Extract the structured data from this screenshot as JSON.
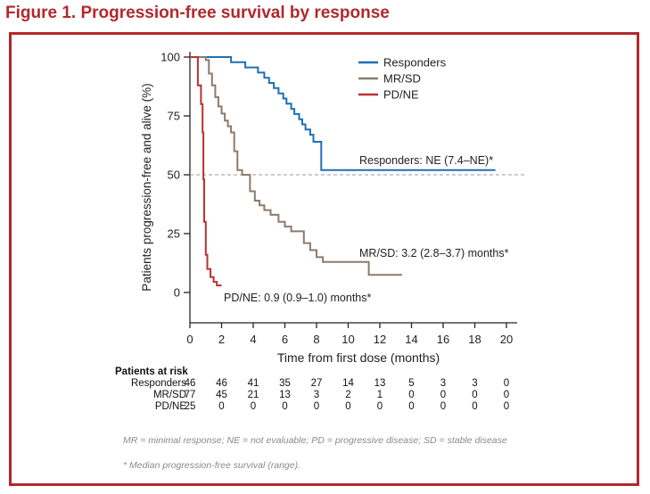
{
  "figure_title": "Figure 1. Progression-free survival by response",
  "colors": {
    "title": "#b2282d",
    "frame": "#b2282d",
    "axis": "#222222",
    "reference_line": "#999999"
  },
  "chart_data": {
    "type": "line",
    "subtype": "kaplan-meier step",
    "xlabel": "Time from first dose (months)",
    "ylabel": "Patients progression-free and alive (%)",
    "xlim": [
      0,
      20
    ],
    "ylim": [
      0,
      100
    ],
    "x_ticks": [
      "0",
      "2",
      "4",
      "6",
      "8",
      "10",
      "12",
      "14",
      "16",
      "18",
      "20"
    ],
    "y_ticks": [
      "0",
      "25",
      "50",
      "75",
      "100"
    ],
    "reference_line": {
      "y": 50,
      "style": "dashed"
    },
    "legend_position": "top-right",
    "series": [
      {
        "name": "Responders",
        "color": "#1f6fb5",
        "annotation": "Responders: NE (7.4–NE)*",
        "points": [
          [
            0,
            100
          ],
          [
            2.6,
            100
          ],
          [
            2.6,
            97.8
          ],
          [
            3.5,
            97.8
          ],
          [
            3.5,
            95.6
          ],
          [
            4.3,
            95.6
          ],
          [
            4.3,
            93.4
          ],
          [
            4.7,
            93.4
          ],
          [
            4.7,
            91.2
          ],
          [
            5,
            91.2
          ],
          [
            5,
            89
          ],
          [
            5.3,
            89
          ],
          [
            5.3,
            86.8
          ],
          [
            5.6,
            86.8
          ],
          [
            5.6,
            84.6
          ],
          [
            5.9,
            84.6
          ],
          [
            5.9,
            82.4
          ],
          [
            6.1,
            82.4
          ],
          [
            6.1,
            80.2
          ],
          [
            6.4,
            80.2
          ],
          [
            6.4,
            78
          ],
          [
            6.6,
            78
          ],
          [
            6.6,
            75.8
          ],
          [
            6.9,
            75.8
          ],
          [
            6.9,
            73.6
          ],
          [
            7.1,
            73.6
          ],
          [
            7.1,
            71.4
          ],
          [
            7.3,
            71.4
          ],
          [
            7.3,
            69.2
          ],
          [
            7.6,
            69.2
          ],
          [
            7.6,
            67
          ],
          [
            7.8,
            67
          ],
          [
            7.8,
            64
          ],
          [
            8.3,
            64
          ],
          [
            8.3,
            52
          ],
          [
            19.3,
            52
          ]
        ]
      },
      {
        "name": "MR/SD",
        "color": "#8c7b6b",
        "annotation": "MR/SD: 3.2 (2.8–3.7) months*",
        "points": [
          [
            0,
            100
          ],
          [
            1,
            100
          ],
          [
            1,
            98.7
          ],
          [
            1.2,
            98.7
          ],
          [
            1.2,
            93
          ],
          [
            1.4,
            93
          ],
          [
            1.4,
            88
          ],
          [
            1.6,
            88
          ],
          [
            1.6,
            83
          ],
          [
            1.8,
            83
          ],
          [
            1.8,
            79
          ],
          [
            2,
            79
          ],
          [
            2,
            76
          ],
          [
            2.2,
            76
          ],
          [
            2.2,
            73
          ],
          [
            2.4,
            73
          ],
          [
            2.4,
            70.6
          ],
          [
            2.6,
            70.6
          ],
          [
            2.6,
            68
          ],
          [
            2.8,
            68
          ],
          [
            2.8,
            60
          ],
          [
            3,
            60
          ],
          [
            3,
            52
          ],
          [
            3.3,
            52
          ],
          [
            3.3,
            50
          ],
          [
            3.8,
            50
          ],
          [
            3.8,
            43
          ],
          [
            4.1,
            43
          ],
          [
            4.1,
            39
          ],
          [
            4.4,
            39
          ],
          [
            4.4,
            37
          ],
          [
            4.7,
            37
          ],
          [
            4.7,
            35
          ],
          [
            5.1,
            35
          ],
          [
            5.1,
            33
          ],
          [
            5.6,
            33
          ],
          [
            5.6,
            30
          ],
          [
            6,
            30
          ],
          [
            6,
            28
          ],
          [
            6.4,
            28
          ],
          [
            6.4,
            26
          ],
          [
            7.2,
            26
          ],
          [
            7.2,
            21
          ],
          [
            7.6,
            21
          ],
          [
            7.6,
            18
          ],
          [
            8,
            18
          ],
          [
            8,
            15
          ],
          [
            8.4,
            15
          ],
          [
            8.4,
            13
          ],
          [
            11.3,
            13
          ],
          [
            11.3,
            7.5
          ],
          [
            13.4,
            7.5
          ]
        ]
      },
      {
        "name": "PD/NE",
        "color": "#b83232",
        "annotation": "PD/NE: 0.9 (0.9–1.0) months*",
        "points": [
          [
            0,
            100
          ],
          [
            0.5,
            100
          ],
          [
            0.5,
            88
          ],
          [
            0.7,
            88
          ],
          [
            0.7,
            80
          ],
          [
            0.8,
            80
          ],
          [
            0.8,
            68
          ],
          [
            0.85,
            68
          ],
          [
            0.85,
            48
          ],
          [
            0.9,
            48
          ],
          [
            0.9,
            30
          ],
          [
            1.0,
            30
          ],
          [
            1.0,
            16
          ],
          [
            1.1,
            16
          ],
          [
            1.1,
            10
          ],
          [
            1.3,
            10
          ],
          [
            1.3,
            6.5
          ],
          [
            1.5,
            6.5
          ],
          [
            1.5,
            4.5
          ],
          [
            1.7,
            4.5
          ],
          [
            1.7,
            3
          ],
          [
            2.0,
            3
          ]
        ]
      }
    ],
    "at_risk": {
      "title": "Patients at risk",
      "rows": [
        {
          "label": "Responders",
          "values": [
            "46",
            "46",
            "41",
            "35",
            "27",
            "14",
            "13",
            "5",
            "3",
            "3",
            "0"
          ]
        },
        {
          "label": "MR/SD",
          "values": [
            "77",
            "45",
            "21",
            "13",
            "3",
            "2",
            "1",
            "0",
            "0",
            "0",
            "0"
          ]
        },
        {
          "label": "PD/NE",
          "values": [
            "25",
            "0",
            "0",
            "0",
            "0",
            "0",
            "0",
            "0",
            "0",
            "0",
            "0"
          ]
        }
      ]
    }
  },
  "footnotes": {
    "abbreviations": "MR = minimal response; NE = not evaluable; PD = progressive disease; SD = stable disease",
    "median_note": "* Median progression-free survival (range)."
  }
}
